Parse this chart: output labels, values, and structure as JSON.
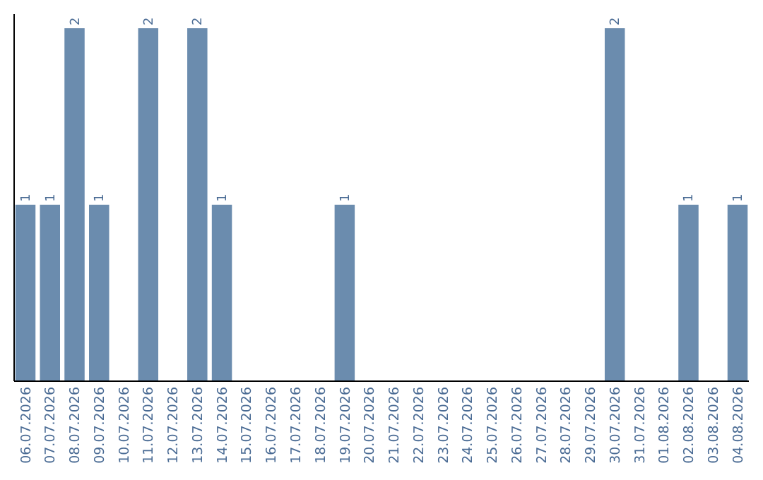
{
  "chart_data": {
    "type": "bar",
    "categories": [
      "06.07.2026",
      "07.07.2026",
      "08.07.2026",
      "09.07.2026",
      "10.07.2026",
      "11.07.2026",
      "12.07.2026",
      "13.07.2026",
      "14.07.2026",
      "15.07.2026",
      "16.07.2026",
      "17.07.2026",
      "18.07.2026",
      "19.07.2026",
      "20.07.2026",
      "21.07.2026",
      "22.07.2026",
      "23.07.2026",
      "24.07.2026",
      "25.07.2026",
      "26.07.2026",
      "27.07.2026",
      "28.07.2026",
      "29.07.2026",
      "30.07.2026",
      "31.07.2026",
      "01.08.2026",
      "02.08.2026",
      "03.08.2026",
      "04.08.2026"
    ],
    "values": [
      1,
      1,
      2,
      1,
      0,
      2,
      0,
      2,
      1,
      0,
      0,
      0,
      0,
      1,
      0,
      0,
      0,
      0,
      0,
      0,
      0,
      0,
      0,
      0,
      2,
      0,
      0,
      1,
      0,
      1
    ],
    "value_labels": [
      "1",
      "1",
      "2",
      "1",
      null,
      "2",
      null,
      "2",
      "1",
      null,
      null,
      null,
      null,
      "1",
      null,
      null,
      null,
      null,
      null,
      null,
      null,
      null,
      null,
      null,
      "2",
      null,
      null,
      "1",
      null,
      "1"
    ],
    "color": "#6b8cae",
    "ylim": [
      0,
      2.08
    ],
    "tick_labels": "x"
  }
}
